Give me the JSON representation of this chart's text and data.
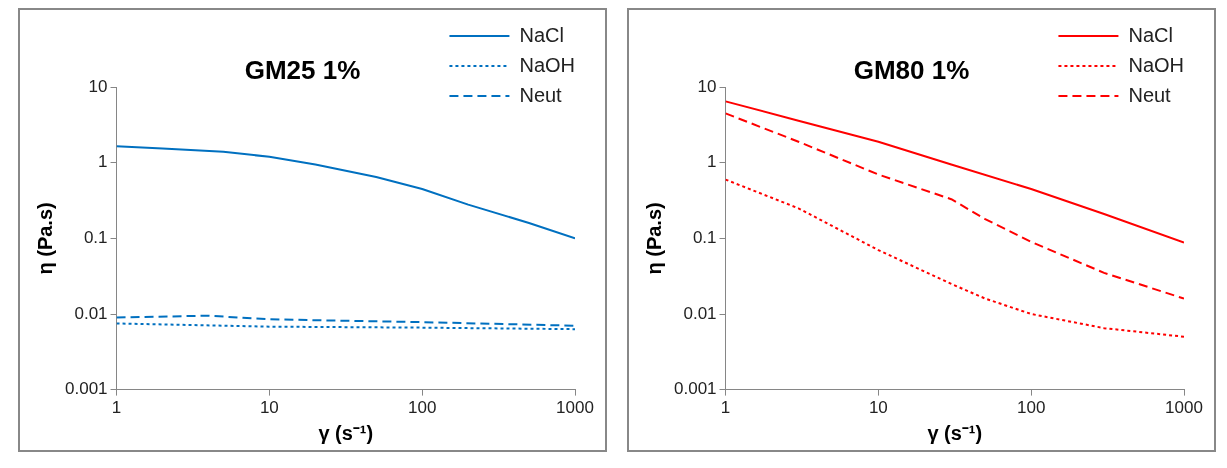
{
  "chart_data": [
    {
      "type": "line",
      "title": "GM25 1%",
      "xlabel": "γ (s⁻¹)",
      "ylabel": "η (Pa.s)",
      "log": "xy",
      "xlim": [
        1,
        1000
      ],
      "xticks": [
        1,
        10,
        100,
        1000
      ],
      "ylim": [
        0.001,
        10
      ],
      "yticks": [
        0.001,
        0.01,
        0.1,
        1,
        10
      ],
      "grid": false,
      "legend": "top right",
      "marker": "none",
      "series": [
        {
          "name": "NaCl",
          "color": "#0070c0",
          "line_style": "solid",
          "x": [
            1,
            2,
            5,
            10,
            20,
            50,
            100,
            200,
            500,
            1000
          ],
          "values": [
            1.65,
            1.55,
            1.4,
            1.2,
            0.95,
            0.65,
            0.45,
            0.28,
            0.16,
            0.1
          ]
        },
        {
          "name": "NaOH",
          "color": "#0070c0",
          "line_style": "dotted",
          "x": [
            1,
            10,
            100,
            1000
          ],
          "values": [
            0.0075,
            0.0068,
            0.0066,
            0.0063
          ]
        },
        {
          "name": "Neut",
          "color": "#0070c0",
          "line_style": "dashed",
          "x": [
            1,
            4,
            10,
            100,
            1000
          ],
          "values": [
            0.009,
            0.0095,
            0.0085,
            0.0078,
            0.007
          ]
        }
      ]
    },
    {
      "type": "line",
      "title": "GM80 1%",
      "xlabel": "γ (s⁻¹)",
      "ylabel": "η (Pa.s)",
      "log": "xy",
      "xlim": [
        1,
        1000
      ],
      "xticks": [
        1,
        10,
        100,
        1000
      ],
      "ylim": [
        0.001,
        10
      ],
      "yticks": [
        0.001,
        0.01,
        0.1,
        1,
        10
      ],
      "grid": false,
      "legend": "top right",
      "marker": "none",
      "series": [
        {
          "name": "NaCl",
          "color": "#ff0000",
          "line_style": "solid",
          "x": [
            1,
            3,
            10,
            30,
            100,
            300,
            1000
          ],
          "values": [
            6.5,
            3.6,
            1.9,
            0.95,
            0.45,
            0.21,
            0.088
          ]
        },
        {
          "name": "NaOH",
          "color": "#ff0000",
          "line_style": "dotted",
          "x": [
            1,
            3,
            10,
            30,
            50,
            100,
            300,
            1000
          ],
          "values": [
            0.6,
            0.25,
            0.07,
            0.025,
            0.016,
            0.01,
            0.0065,
            0.005
          ]
        },
        {
          "name": "Neut",
          "color": "#ff0000",
          "line_style": "dashed",
          "x": [
            1,
            3,
            10,
            30,
            50,
            100,
            300,
            1000
          ],
          "values": [
            4.5,
            1.9,
            0.7,
            0.33,
            0.18,
            0.09,
            0.035,
            0.016
          ]
        }
      ]
    }
  ]
}
